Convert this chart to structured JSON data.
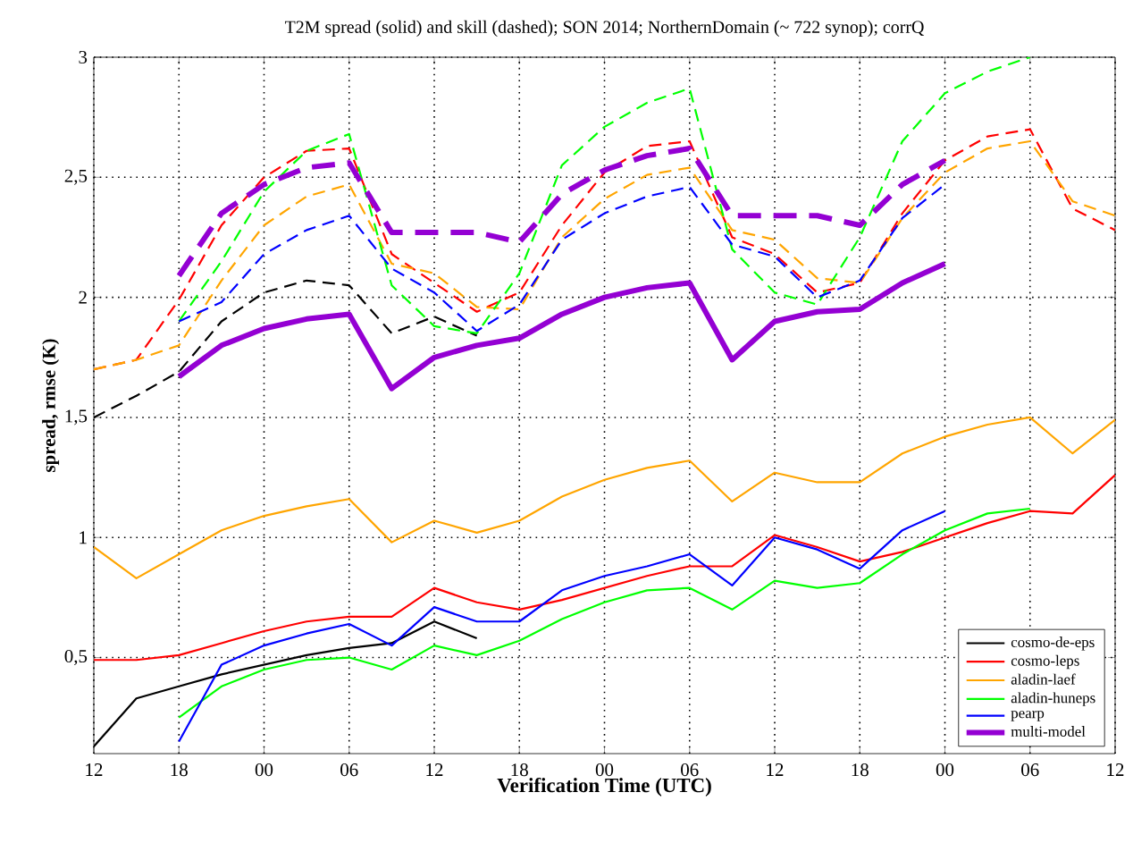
{
  "chart_data": {
    "type": "line",
    "title": "T2M spread (solid) and skill (dashed); SON 2014; NorthernDomain (~ 722 synop); corrQ",
    "xlabel": "Verification Time (UTC)",
    "ylabel": "spread, rmse (K)",
    "categories": [
      "12",
      null,
      "18",
      null,
      "00",
      null,
      "06",
      null,
      "12",
      null,
      "18",
      null,
      "00",
      null,
      "06",
      null,
      "12",
      null,
      "18",
      null,
      "00",
      null,
      "06",
      null,
      "12"
    ],
    "ylim": [
      0.1,
      3
    ],
    "yticks": [
      {
        "value": 0.5,
        "label": "0,5"
      },
      1,
      {
        "value": 1.5,
        "label": "1,5"
      },
      2,
      {
        "value": 2.5,
        "label": "2,5"
      },
      3
    ],
    "grid": true,
    "legend": "bottom right",
    "series": [
      {
        "name": "cosmo-de-eps",
        "color": "#000000",
        "line_style": "solid",
        "values": [
          0.13,
          0.33,
          0.38,
          0.43,
          0.47,
          0.51,
          0.54,
          0.56,
          0.65,
          0.58,
          null,
          null,
          null,
          null,
          null,
          null,
          null,
          null,
          null,
          null,
          null,
          null,
          null,
          null,
          null
        ]
      },
      {
        "name": "cosmo-leps",
        "color": "#ff0000",
        "line_style": "solid",
        "values": [
          0.49,
          0.49,
          0.51,
          0.56,
          0.61,
          0.65,
          0.67,
          0.67,
          0.79,
          0.73,
          0.7,
          0.74,
          0.79,
          0.84,
          0.88,
          0.88,
          1.01,
          0.96,
          0.9,
          0.94,
          1.0,
          1.06,
          1.11,
          1.1,
          1.26
        ]
      },
      {
        "name": "aladin-laef",
        "color": "#ffa500",
        "line_style": "solid",
        "values": [
          0.96,
          0.83,
          0.93,
          1.03,
          1.09,
          1.13,
          1.16,
          0.98,
          1.07,
          1.02,
          1.07,
          1.17,
          1.24,
          1.29,
          1.32,
          1.15,
          1.27,
          1.23,
          1.23,
          1.35,
          1.42,
          1.47,
          1.5,
          1.35,
          1.49
        ]
      },
      {
        "name": "aladin-huneps",
        "color": "#00ff00",
        "line_style": "solid",
        "values": [
          null,
          null,
          0.25,
          0.38,
          0.45,
          0.49,
          0.5,
          0.45,
          0.55,
          0.51,
          0.57,
          0.66,
          0.73,
          0.78,
          0.79,
          0.7,
          0.82,
          0.79,
          0.81,
          0.93,
          1.03,
          1.1,
          1.12,
          null,
          null
        ]
      },
      {
        "name": "pearp",
        "color": "#0000ff",
        "line_style": "solid",
        "values": [
          null,
          null,
          0.15,
          0.47,
          0.55,
          0.6,
          0.64,
          0.55,
          0.71,
          0.65,
          0.65,
          0.78,
          0.84,
          0.88,
          0.93,
          0.8,
          1.0,
          0.95,
          0.87,
          1.03,
          1.11,
          null,
          null,
          null,
          null
        ]
      },
      {
        "name": "multi-model",
        "color": "#9400d3",
        "line_style": "solid",
        "values": [
          null,
          null,
          1.67,
          1.8,
          1.87,
          1.91,
          1.93,
          1.62,
          1.75,
          1.8,
          1.83,
          1.93,
          2.0,
          2.04,
          2.06,
          1.74,
          1.9,
          1.94,
          1.95,
          2.06,
          2.14,
          null,
          null,
          null,
          null
        ]
      },
      {
        "color": "#000000",
        "line_style": "dashed",
        "values": [
          1.5,
          1.59,
          1.69,
          1.9,
          2.02,
          2.07,
          2.05,
          1.85,
          1.92,
          1.84,
          null,
          null,
          null,
          null,
          null,
          null,
          null,
          null,
          null,
          null,
          null,
          null,
          null,
          null,
          null
        ]
      },
      {
        "color": "#ff0000",
        "line_style": "dashed",
        "values": [
          1.7,
          1.74,
          1.99,
          2.3,
          2.5,
          2.61,
          2.62,
          2.18,
          2.06,
          1.94,
          2.02,
          2.3,
          2.52,
          2.63,
          2.65,
          2.25,
          2.18,
          2.02,
          2.06,
          2.35,
          2.57,
          2.67,
          2.7,
          2.37,
          2.28
        ]
      },
      {
        "color": "#ffa500",
        "line_style": "dashed",
        "values": [
          1.7,
          1.74,
          1.8,
          2.07,
          2.3,
          2.42,
          2.47,
          2.14,
          2.1,
          1.96,
          1.95,
          2.25,
          2.41,
          2.51,
          2.54,
          2.28,
          2.24,
          2.08,
          2.06,
          2.33,
          2.52,
          2.62,
          2.65,
          2.4,
          2.34
        ]
      },
      {
        "color": "#00ff00",
        "line_style": "dashed",
        "values": [
          null,
          null,
          1.9,
          2.15,
          2.44,
          2.61,
          2.68,
          2.05,
          1.88,
          1.85,
          2.1,
          2.55,
          2.71,
          2.81,
          2.87,
          2.2,
          2.02,
          1.97,
          2.25,
          2.65,
          2.85,
          2.94,
          3.0,
          null,
          null
        ]
      },
      {
        "color": "#0000ff",
        "line_style": "dashed",
        "values": [
          null,
          null,
          1.9,
          1.98,
          2.18,
          2.28,
          2.34,
          2.12,
          2.02,
          1.86,
          1.97,
          2.24,
          2.35,
          2.42,
          2.46,
          2.22,
          2.17,
          2.0,
          2.07,
          2.33,
          2.47,
          null,
          null,
          null,
          null
        ]
      },
      {
        "color": "#9400d3",
        "line_style": "dashed",
        "values": [
          null,
          null,
          2.09,
          2.35,
          2.47,
          2.54,
          2.56,
          2.27,
          2.27,
          2.27,
          2.23,
          2.43,
          2.53,
          2.59,
          2.62,
          2.34,
          2.34,
          2.34,
          2.3,
          2.47,
          2.57,
          null,
          null,
          null,
          null
        ]
      }
    ]
  }
}
